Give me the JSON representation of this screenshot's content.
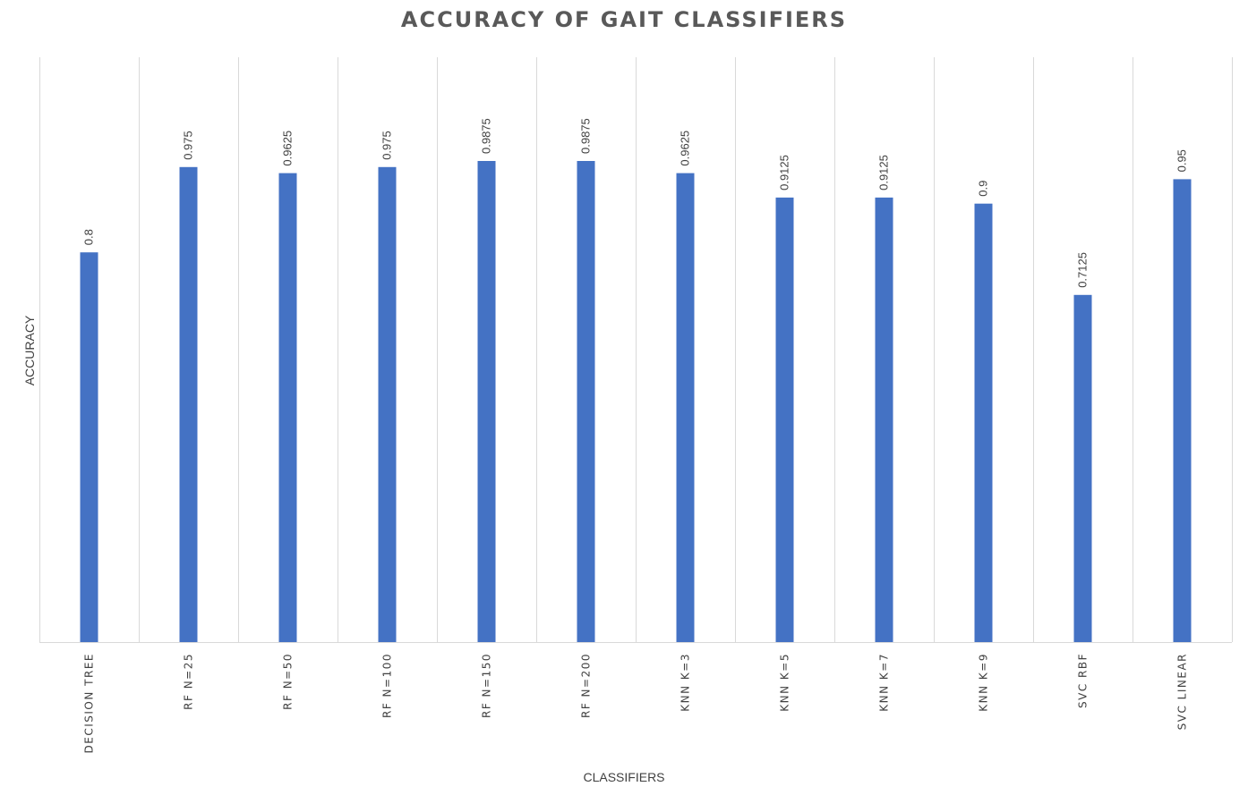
{
  "chart_data": {
    "type": "bar",
    "title": "ACCURACY OF GAIT CLASSIFIERS",
    "xlabel": "CLASSIFIERS",
    "ylabel": "ACCURACY",
    "categories": [
      "DECISION TREE",
      "RF N=25",
      "RF N=50",
      "RF N=100",
      "RF N=150",
      "RF N=200",
      "KNN K=3",
      "KNN K=5",
      "KNN K=7",
      "KNN K=9",
      "SVC RBF",
      "SVC LINEAR"
    ],
    "values": [
      0.8,
      0.975,
      0.9625,
      0.975,
      0.9875,
      0.9875,
      0.9625,
      0.9125,
      0.9125,
      0.9,
      0.7125,
      0.95
    ],
    "data_labels": [
      "0.8",
      "0.975",
      "0.9625",
      "0.975",
      "0.9875",
      "0.9875",
      "0.9625",
      "0.9125",
      "0.9125",
      "0.9",
      "0.7125",
      "0.95"
    ],
    "ylim": [
      0,
      1.0
    ],
    "grid": "vertical category gridlines",
    "legend": "none",
    "colors": {
      "bar": "#4472c4",
      "grid": "#d9d9d9",
      "title": "#595959",
      "text": "#404040"
    }
  }
}
